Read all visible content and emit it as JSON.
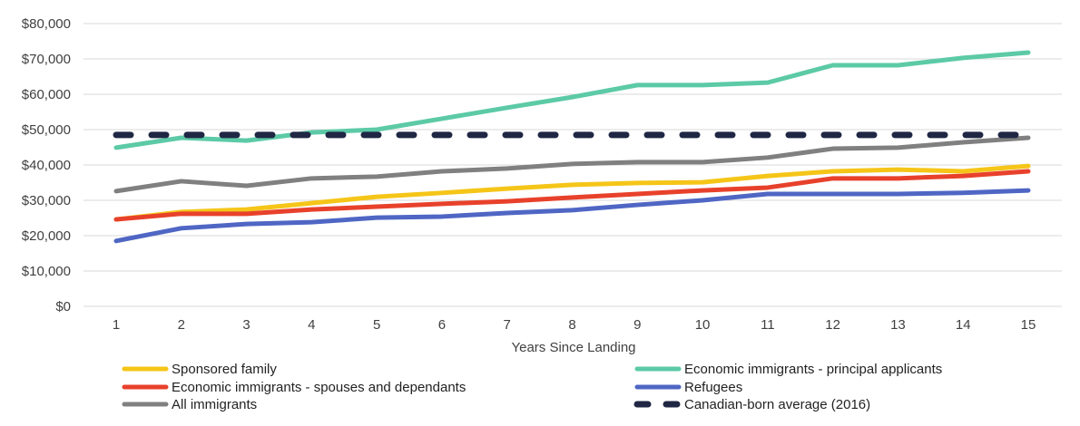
{
  "chart_data": {
    "type": "line",
    "title": "",
    "xlabel": "Years Since Landing",
    "ylabel": "",
    "x": [
      1,
      2,
      3,
      4,
      5,
      6,
      7,
      8,
      9,
      10,
      11,
      12,
      13,
      14,
      15
    ],
    "ylim": [
      0,
      80000
    ],
    "yticks": [
      0,
      10000,
      20000,
      30000,
      40000,
      50000,
      60000,
      70000,
      80000
    ],
    "ytick_labels": [
      "$0",
      "$10,000",
      "$20,000",
      "$30,000",
      "$40,000",
      "$50,000",
      "$60,000",
      "$70,000",
      "$80,000"
    ],
    "grid": true,
    "legend_placement": "bottom",
    "series": [
      {
        "name": "Sponsored family",
        "color": "#f5c518",
        "dashed": false,
        "values": [
          24600,
          26700,
          27400,
          29200,
          31000,
          32100,
          33300,
          34400,
          34900,
          35100,
          36900,
          38200,
          38700,
          38200,
          39700
        ]
      },
      {
        "name": "Economic  immigrants - principal applicants",
        "color": "#5ccaa6",
        "dashed": false,
        "values": [
          44900,
          47700,
          46900,
          49200,
          50000,
          53100,
          56200,
          59200,
          62600,
          62600,
          63300,
          68200,
          68200,
          70300,
          71800
        ]
      },
      {
        "name": "Economic  immigrants - spouses and dependants",
        "color": "#e8412b",
        "dashed": false,
        "values": [
          24600,
          26200,
          26200,
          27400,
          28200,
          29000,
          29700,
          30800,
          31800,
          32800,
          33600,
          36200,
          36200,
          36900,
          38200
        ]
      },
      {
        "name": "Refugees",
        "color": "#4f66c4",
        "dashed": false,
        "values": [
          18500,
          22100,
          23300,
          23800,
          25100,
          25400,
          26400,
          27200,
          28700,
          30000,
          31800,
          31800,
          31800,
          32100,
          32800
        ]
      },
      {
        "name": "All immigrants",
        "color": "#808080",
        "dashed": false,
        "values": [
          32600,
          35400,
          34100,
          36200,
          36700,
          38200,
          39000,
          40300,
          40800,
          40800,
          42100,
          44600,
          44900,
          46400,
          47700
        ]
      },
      {
        "name": "Canadian-born average (2016)",
        "color": "#1f2744",
        "dashed": true,
        "values": [
          48500,
          48500,
          48500,
          48500,
          48500,
          48500,
          48500,
          48500,
          48500,
          48500,
          48500,
          48500,
          48500,
          48500,
          48500
        ]
      }
    ]
  }
}
